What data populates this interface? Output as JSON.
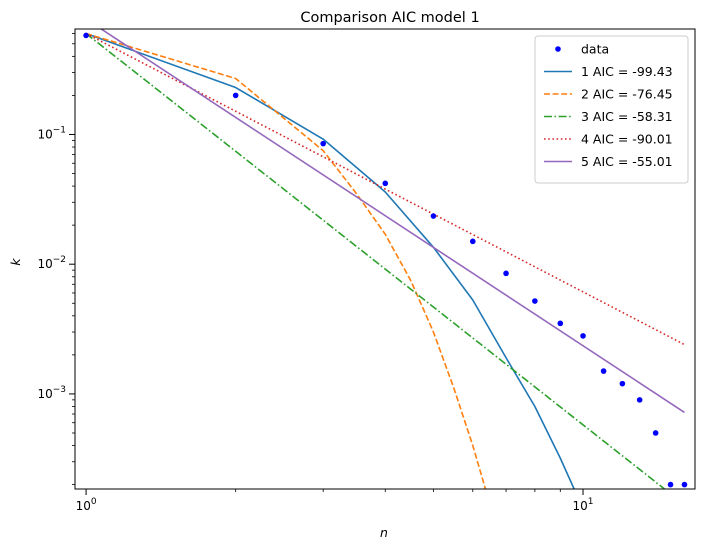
{
  "chart_data": {
    "type": "line",
    "title": "Comparison AIC model 1",
    "xlabel": "n",
    "ylabel": "k",
    "xscale": "log",
    "yscale": "log",
    "xlim": [
      0.95,
      16.8
    ],
    "ylim": [
      0.000185,
      0.65
    ],
    "grid": false,
    "legend_position": "top-right",
    "x_ticks": [
      {
        "value": 1,
        "base": "10",
        "exp": "0"
      },
      {
        "value": 10,
        "base": "10",
        "exp": "1"
      }
    ],
    "y_ticks": [
      {
        "value": 0.001,
        "base": "10",
        "exp": "−3"
      },
      {
        "value": 0.01,
        "base": "10",
        "exp": "−2"
      },
      {
        "value": 0.1,
        "base": "10",
        "exp": "−1"
      }
    ],
    "series": [
      {
        "name": "data",
        "style": "points",
        "color": "#0000ff",
        "x": [
          1,
          2,
          3,
          4,
          5,
          6,
          7,
          8,
          9,
          10,
          11,
          12,
          13,
          14,
          15,
          16
        ],
        "y": [
          0.58,
          0.2,
          0.085,
          0.042,
          0.0235,
          0.015,
          0.0085,
          0.0052,
          0.0035,
          0.0028,
          0.0015,
          0.0012,
          0.0009,
          0.0005,
          0.0002,
          0.0002
        ]
      },
      {
        "name": "1 AIC = -99.43",
        "style": "solid",
        "color": "#1f77b4",
        "x": [
          1,
          2,
          3,
          4,
          5,
          6,
          7,
          8,
          9,
          10
        ],
        "y": [
          0.6,
          0.23,
          0.092,
          0.036,
          0.0135,
          0.0053,
          0.0019,
          0.0008,
          0.00032,
          0.00013
        ]
      },
      {
        "name": "2 AIC = -76.45",
        "style": "dashed",
        "color": "#ff7f0e",
        "x": [
          1,
          2,
          3,
          3.5,
          4,
          4.5,
          5,
          5.5,
          6,
          6.5
        ],
        "y": [
          0.6,
          0.27,
          0.075,
          0.035,
          0.017,
          0.0075,
          0.003,
          0.0011,
          0.0004,
          0.00014
        ]
      },
      {
        "name": "3 AIC = -58.31",
        "style": "dashdot",
        "color": "#2ca02c",
        "x": [
          1,
          16
        ],
        "y": [
          0.6,
          0.00014
        ]
      },
      {
        "name": "4 AIC = -90.01",
        "style": "dotted",
        "color": "#d62728",
        "x": [
          1,
          16
        ],
        "y": [
          0.6,
          0.0024
        ]
      },
      {
        "name": "5 AIC = -55.01",
        "style": "solid",
        "color": "#9467bd",
        "x": [
          1.03,
          16
        ],
        "y": [
          0.72,
          0.00072
        ]
      }
    ]
  }
}
